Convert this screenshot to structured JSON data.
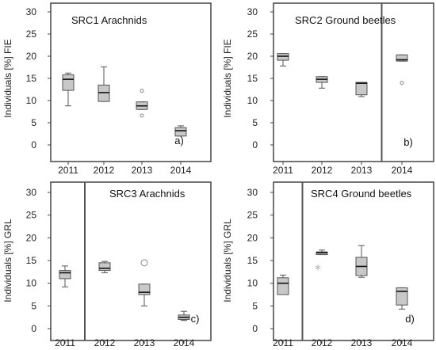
{
  "chart_data": [
    {
      "type": "box",
      "title": "SRC1 Arachnids",
      "ylabel": "Individuals [%] FIE",
      "panel_label": "a)",
      "ylim": [
        0,
        30
      ],
      "yticks": [
        0,
        5,
        10,
        15,
        20,
        25,
        30
      ],
      "categories": [
        "2011",
        "2012",
        "2013",
        "2014"
      ],
      "separator_after_index": -1,
      "boxes": [
        {
          "min": 8.8,
          "q1": 12.3,
          "median": 14.8,
          "q3": 15.8,
          "max": 16.2,
          "outliers": [],
          "stars": []
        },
        {
          "min": 9.8,
          "q1": 9.8,
          "median": 11.8,
          "q3": 13.5,
          "max": 17.6,
          "outliers": [],
          "stars": []
        },
        {
          "min": 8.0,
          "q1": 8.0,
          "median": 8.8,
          "q3": 9.7,
          "max": 9.7,
          "outliers": [
            12.2,
            6.6
          ],
          "stars": []
        },
        {
          "min": 2.0,
          "q1": 2.0,
          "median": 3.2,
          "q3": 3.9,
          "max": 4.3,
          "outliers": [],
          "stars": []
        }
      ]
    },
    {
      "type": "box",
      "title": "SRC2 Ground beetles",
      "ylabel": "Individuals [%] FIE",
      "panel_label": "b)",
      "ylim": [
        0,
        30
      ],
      "yticks": [
        0,
        5,
        10,
        15,
        20,
        25,
        30
      ],
      "categories": [
        "2011",
        "2012",
        "2013",
        "2014"
      ],
      "separator_after_index": 2,
      "boxes": [
        {
          "min": 17.8,
          "q1": 19.1,
          "median": 20.0,
          "q3": 20.6,
          "max": 20.6,
          "outliers": [],
          "stars": []
        },
        {
          "min": 12.8,
          "q1": 14.1,
          "median": 14.8,
          "q3": 15.4,
          "max": 15.4,
          "outliers": [],
          "stars": []
        },
        {
          "min": 10.9,
          "q1": 11.3,
          "median": 13.9,
          "q3": 14.1,
          "max": 14.1,
          "outliers": [],
          "stars": []
        },
        {
          "min": 18.9,
          "q1": 18.9,
          "median": 19.2,
          "q3": 20.3,
          "max": 20.3,
          "outliers": [
            14.0
          ],
          "stars": []
        }
      ]
    },
    {
      "type": "box",
      "title": "SRC3 Arachnids",
      "ylabel": "Individuals [%] GRL",
      "panel_label": "c)",
      "ylim": [
        0,
        30
      ],
      "yticks": [
        0,
        5,
        10,
        15,
        20,
        25,
        30
      ],
      "categories": [
        "2011",
        "2012",
        "2013",
        "2014"
      ],
      "separator_after_index": 0,
      "boxes": [
        {
          "min": 9.2,
          "q1": 11.0,
          "median": 12.3,
          "q3": 12.8,
          "max": 13.8,
          "outliers": [],
          "stars": []
        },
        {
          "min": 12.3,
          "q1": 12.8,
          "median": 13.3,
          "q3": 14.5,
          "max": 14.8,
          "outliers": [],
          "stars": []
        },
        {
          "min": 5.0,
          "q1": 7.5,
          "median": 8.0,
          "q3": 9.8,
          "max": 9.8,
          "outliers": [
            14.5
          ],
          "stars": []
        },
        {
          "min": 1.8,
          "q1": 2.0,
          "median": 2.5,
          "q3": 3.0,
          "max": 3.8,
          "outliers": [],
          "stars": []
        }
      ]
    },
    {
      "type": "box",
      "title": "SRC4 Ground beetles",
      "ylabel": "Individuals [%] GRL",
      "panel_label": "d)",
      "ylim": [
        0,
        30
      ],
      "yticks": [
        0,
        5,
        10,
        15,
        20,
        25,
        30
      ],
      "categories": [
        "2011",
        "2012",
        "2013",
        "2014"
      ],
      "separator_after_index": 0,
      "boxes": [
        {
          "min": 7.5,
          "q1": 7.5,
          "median": 10.0,
          "q3": 11.2,
          "max": 11.8,
          "outliers": [],
          "stars": []
        },
        {
          "min": 16.3,
          "q1": 16.3,
          "median": 16.7,
          "q3": 16.9,
          "max": 17.3,
          "outliers": [],
          "stars": [
            13.5
          ]
        },
        {
          "min": 11.3,
          "q1": 11.7,
          "median": 13.7,
          "q3": 15.7,
          "max": 18.3,
          "outliers": [],
          "stars": []
        },
        {
          "min": 4.3,
          "q1": 5.2,
          "median": 8.2,
          "q3": 9.0,
          "max": 9.0,
          "outliers": [],
          "stars": []
        }
      ]
    }
  ],
  "colors": {
    "box_fill": "#c8c8c8",
    "box_stroke": "#555555",
    "frame": "#444444",
    "separator": "#555555",
    "outlier": "#888888",
    "star": "#bbbbbb"
  }
}
